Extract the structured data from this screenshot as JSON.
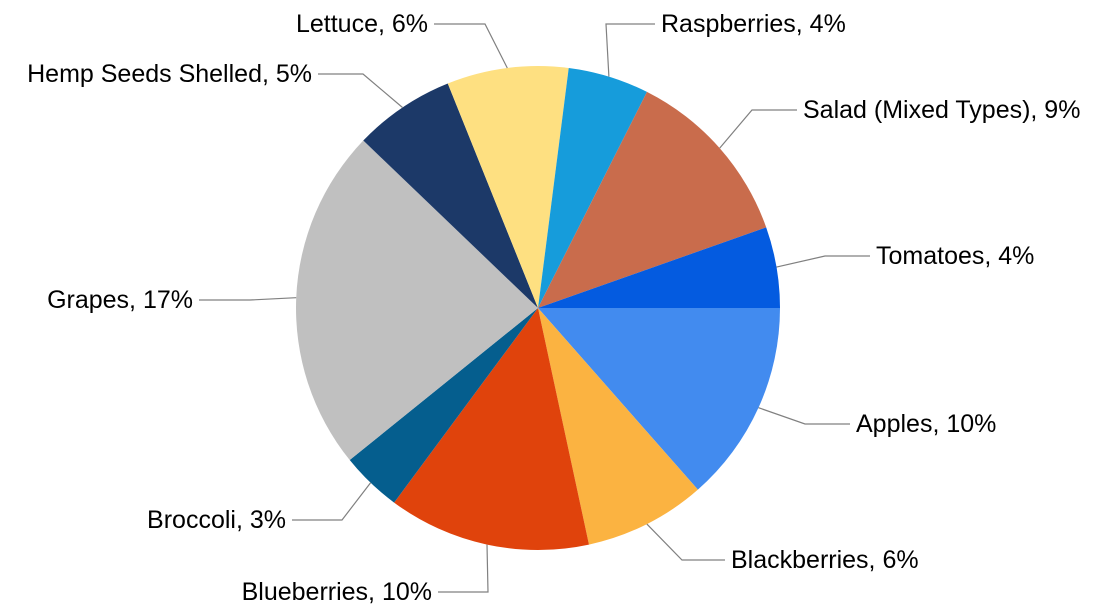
{
  "chart_data": {
    "type": "pie",
    "title": "",
    "start_angle_deg": 0,
    "direction": "clockwise",
    "slices": [
      {
        "label": "Apples",
        "value": 10,
        "text": "Apples, 10%",
        "color": "#428BEF"
      },
      {
        "label": "Blackberries",
        "value": 6,
        "text": "Blackberries, 6%",
        "color": "#FBB341"
      },
      {
        "label": "Blueberries",
        "value": 10,
        "text": "Blueberries, 10%",
        "color": "#E0430C"
      },
      {
        "label": "Broccoli",
        "value": 3,
        "text": "Broccoli, 3%",
        "color": "#055E8E"
      },
      {
        "label": "Grapes",
        "value": 17,
        "text": "Grapes, 17%",
        "color": "#C0C0C0"
      },
      {
        "label": "Hemp Seeds Shelled",
        "value": 5,
        "text": "Hemp Seeds Shelled, 5%",
        "color": "#1C3968"
      },
      {
        "label": "Lettuce",
        "value": 6,
        "text": "Lettuce, 6%",
        "color": "#FEE081"
      },
      {
        "label": "Raspberries",
        "value": 4,
        "text": "Raspberries, 4%",
        "color": "#169CDB"
      },
      {
        "label": "Salad (Mixed Types)",
        "value": 9,
        "text": "Salad (Mixed Types), 9%",
        "color": "#C96C4C"
      },
      {
        "label": "Tomatoes",
        "value": 4,
        "text": "Tomatoes, 4%",
        "color": "#045BE0"
      }
    ]
  }
}
